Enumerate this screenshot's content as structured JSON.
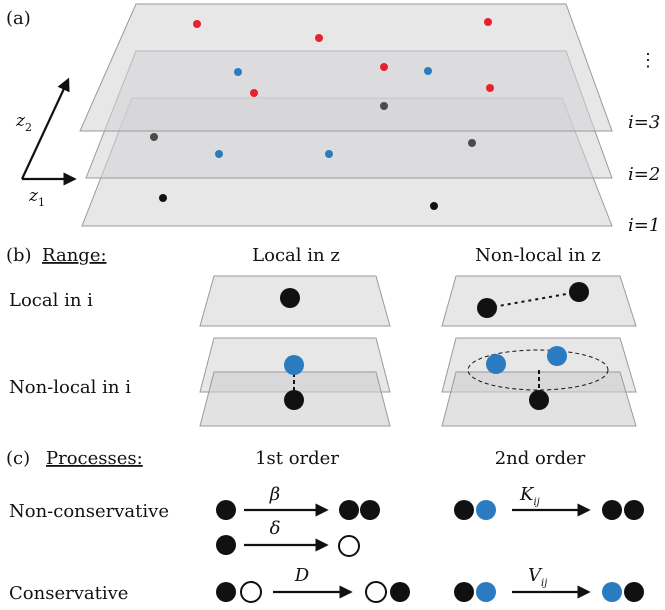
{
  "panel_a": {
    "label": "(a)",
    "axis_z2_base": "z",
    "axis_z2_sub": "2",
    "axis_z1_base": "z",
    "axis_z1_sub": "1",
    "layer_labels": [
      "i=1",
      "i=2",
      "i=3"
    ],
    "layer_dots": "⋮",
    "colors": {
      "red": "#e8222a",
      "blue": "#2a7bbf",
      "gray": "#4a4a4a",
      "black": "#111111"
    }
  },
  "panel_b": {
    "label": "(b)",
    "title": "Range:",
    "col1": "Local in z",
    "col2": "Non-local in z",
    "row1": "Local in i",
    "row2": "Non-local in i"
  },
  "panel_c": {
    "label": "(c)",
    "title": "Processes:",
    "col1": "1st order",
    "col2": "2nd order",
    "row1": "Non-conservative",
    "row2": "Conservative",
    "beta": "β",
    "delta": "δ",
    "D": "D",
    "K": "K",
    "K_sub": "ij",
    "V": "V",
    "V_sub": "ij"
  }
}
